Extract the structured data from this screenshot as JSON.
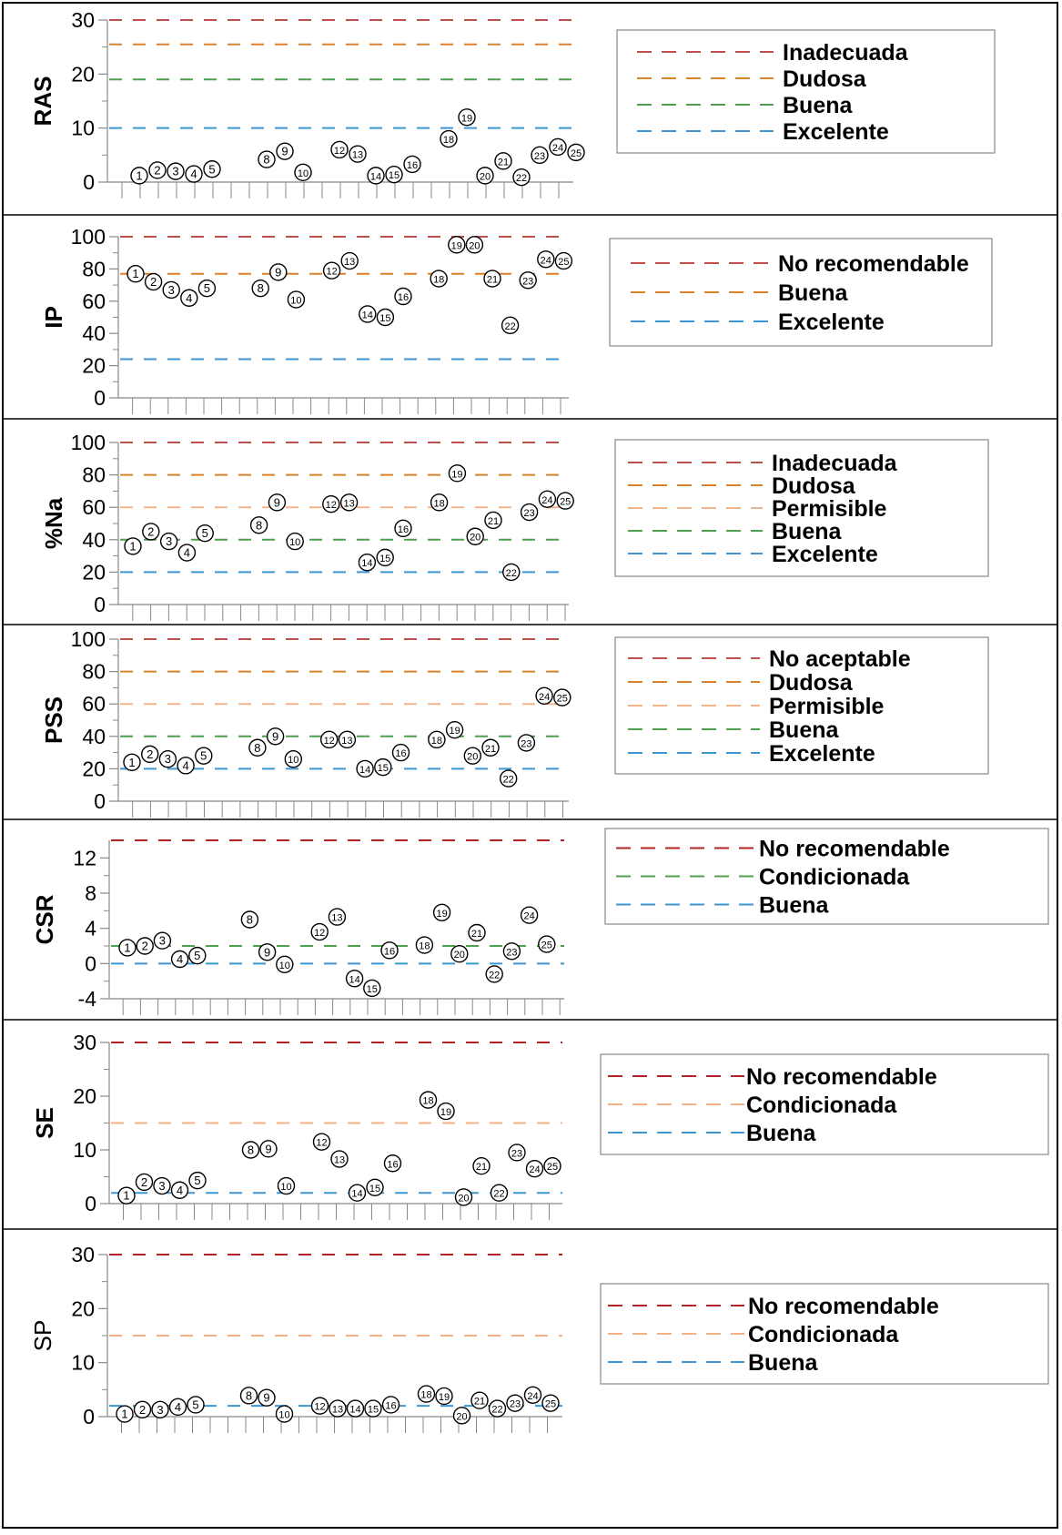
{
  "colors": {
    "inadecuada": "#C0504D",
    "dudosa": "#D9822B",
    "permisible": "#F2B48C",
    "buena_green": "#4EA04E",
    "excelente": "#3C96D2",
    "no_recomendable": "#B22222",
    "condicionada_orange": "#F4B183",
    "condicionada_green": "#4EA04E",
    "buena_blue": "#3C96D2"
  },
  "chart_data": [
    {
      "type": "scatter",
      "ylabel": "RAS",
      "ylim": [
        0,
        30
      ],
      "yticks": [
        0,
        10,
        20,
        30
      ],
      "points": [
        {
          "label": "1",
          "x": 1,
          "y": 1.2
        },
        {
          "label": "2",
          "x": 2,
          "y": 2.2
        },
        {
          "label": "3",
          "x": 3,
          "y": 2.0
        },
        {
          "label": "4",
          "x": 4,
          "y": 1.5
        },
        {
          "label": "5",
          "x": 5,
          "y": 2.4
        },
        {
          "label": "8",
          "x": 8,
          "y": 4.2
        },
        {
          "label": "9",
          "x": 9,
          "y": 5.7
        },
        {
          "label": "10",
          "x": 10,
          "y": 1.8
        },
        {
          "label": "12",
          "x": 12,
          "y": 6.0
        },
        {
          "label": "13",
          "x": 13,
          "y": 5.2
        },
        {
          "label": "14",
          "x": 14,
          "y": 1.2
        },
        {
          "label": "15",
          "x": 15,
          "y": 1.4
        },
        {
          "label": "16",
          "x": 16,
          "y": 3.3
        },
        {
          "label": "18",
          "x": 18,
          "y": 8.0
        },
        {
          "label": "19",
          "x": 19,
          "y": 12.0
        },
        {
          "label": "20",
          "x": 20,
          "y": 1.2
        },
        {
          "label": "21",
          "x": 21,
          "y": 3.9
        },
        {
          "label": "22",
          "x": 22,
          "y": 0.9
        },
        {
          "label": "23",
          "x": 23,
          "y": 5.0
        },
        {
          "label": "24",
          "x": 24,
          "y": 6.5
        },
        {
          "label": "25",
          "x": 25,
          "y": 5.5
        }
      ],
      "thresholds": [
        {
          "name": "Inadecuada",
          "value": 30,
          "color": "#C0504D"
        },
        {
          "name": "Dudosa",
          "value": 25.5,
          "color": "#D9822B"
        },
        {
          "name": "Buena",
          "value": 19,
          "color": "#4EA04E"
        },
        {
          "name": "Excelente",
          "value": 10,
          "color": "#3C96D2"
        }
      ]
    },
    {
      "type": "scatter",
      "ylabel": "IP",
      "ylim": [
        0,
        100
      ],
      "yticks": [
        0,
        20,
        40,
        60,
        80,
        100
      ],
      "points": [
        {
          "label": "1",
          "x": 1,
          "y": 77
        },
        {
          "label": "2",
          "x": 2,
          "y": 72
        },
        {
          "label": "3",
          "x": 3,
          "y": 67
        },
        {
          "label": "4",
          "x": 4,
          "y": 62
        },
        {
          "label": "5",
          "x": 5,
          "y": 68
        },
        {
          "label": "8",
          "x": 8,
          "y": 68
        },
        {
          "label": "9",
          "x": 9,
          "y": 78
        },
        {
          "label": "10",
          "x": 10,
          "y": 61
        },
        {
          "label": "12",
          "x": 12,
          "y": 79
        },
        {
          "label": "13",
          "x": 13,
          "y": 85
        },
        {
          "label": "14",
          "x": 14,
          "y": 52
        },
        {
          "label": "15",
          "x": 15,
          "y": 50
        },
        {
          "label": "16",
          "x": 16,
          "y": 63
        },
        {
          "label": "18",
          "x": 18,
          "y": 74
        },
        {
          "label": "19",
          "x": 19,
          "y": 95
        },
        {
          "label": "20",
          "x": 20,
          "y": 95
        },
        {
          "label": "21",
          "x": 21,
          "y": 74
        },
        {
          "label": "22",
          "x": 22,
          "y": 45
        },
        {
          "label": "23",
          "x": 23,
          "y": 73
        },
        {
          "label": "24",
          "x": 24,
          "y": 86
        },
        {
          "label": "25",
          "x": 25,
          "y": 85
        }
      ],
      "thresholds": [
        {
          "name": "No recomendable",
          "value": 100,
          "color": "#C0504D"
        },
        {
          "name": "Buena",
          "value": 77,
          "color": "#D9822B"
        },
        {
          "name": "Excelente",
          "value": 24,
          "color": "#3C96D2"
        }
      ]
    },
    {
      "type": "scatter",
      "ylabel": "%Na",
      "ylim": [
        0,
        100
      ],
      "yticks": [
        0,
        20,
        40,
        60,
        80,
        100
      ],
      "points": [
        {
          "label": "1",
          "x": 1,
          "y": 36
        },
        {
          "label": "2",
          "x": 2,
          "y": 45
        },
        {
          "label": "3",
          "x": 3,
          "y": 39
        },
        {
          "label": "4",
          "x": 4,
          "y": 32
        },
        {
          "label": "5",
          "x": 5,
          "y": 44
        },
        {
          "label": "8",
          "x": 8,
          "y": 49
        },
        {
          "label": "9",
          "x": 9,
          "y": 63
        },
        {
          "label": "10",
          "x": 10,
          "y": 39
        },
        {
          "label": "12",
          "x": 12,
          "y": 62
        },
        {
          "label": "13",
          "x": 13,
          "y": 63
        },
        {
          "label": "14",
          "x": 14,
          "y": 26
        },
        {
          "label": "15",
          "x": 15,
          "y": 29
        },
        {
          "label": "16",
          "x": 16,
          "y": 47
        },
        {
          "label": "18",
          "x": 18,
          "y": 63
        },
        {
          "label": "19",
          "x": 19,
          "y": 81
        },
        {
          "label": "20",
          "x": 20,
          "y": 42
        },
        {
          "label": "21",
          "x": 21,
          "y": 52
        },
        {
          "label": "22",
          "x": 22,
          "y": 20
        },
        {
          "label": "23",
          "x": 23,
          "y": 57
        },
        {
          "label": "24",
          "x": 24,
          "y": 65
        },
        {
          "label": "25",
          "x": 25,
          "y": 64
        }
      ],
      "thresholds": [
        {
          "name": "Inadecuada",
          "value": 100,
          "color": "#C0504D"
        },
        {
          "name": "Dudosa",
          "value": 80,
          "color": "#D9822B"
        },
        {
          "name": "Permisible",
          "value": 60,
          "color": "#F2B48C"
        },
        {
          "name": "Buena",
          "value": 40,
          "color": "#4EA04E"
        },
        {
          "name": "Excelente",
          "value": 20,
          "color": "#3C96D2"
        }
      ]
    },
    {
      "type": "scatter",
      "ylabel": "PSS",
      "ylim": [
        0,
        100
      ],
      "yticks": [
        0,
        20,
        40,
        60,
        80,
        100
      ],
      "points": [
        {
          "label": "1",
          "x": 1,
          "y": 24
        },
        {
          "label": "2",
          "x": 2,
          "y": 29
        },
        {
          "label": "3",
          "x": 3,
          "y": 26
        },
        {
          "label": "4",
          "x": 4,
          "y": 22
        },
        {
          "label": "5",
          "x": 5,
          "y": 28
        },
        {
          "label": "8",
          "x": 8,
          "y": 33
        },
        {
          "label": "9",
          "x": 9,
          "y": 40
        },
        {
          "label": "10",
          "x": 10,
          "y": 26
        },
        {
          "label": "12",
          "x": 12,
          "y": 38
        },
        {
          "label": "13",
          "x": 13,
          "y": 38
        },
        {
          "label": "14",
          "x": 14,
          "y": 20
        },
        {
          "label": "15",
          "x": 15,
          "y": 21
        },
        {
          "label": "16",
          "x": 16,
          "y": 30
        },
        {
          "label": "18",
          "x": 18,
          "y": 38
        },
        {
          "label": "19",
          "x": 19,
          "y": 44
        },
        {
          "label": "20",
          "x": 20,
          "y": 28
        },
        {
          "label": "21",
          "x": 21,
          "y": 33
        },
        {
          "label": "22",
          "x": 22,
          "y": 14
        },
        {
          "label": "23",
          "x": 23,
          "y": 36
        },
        {
          "label": "24",
          "x": 24,
          "y": 65
        },
        {
          "label": "25",
          "x": 25,
          "y": 64
        }
      ],
      "thresholds": [
        {
          "name": "No aceptable",
          "value": 100,
          "color": "#C0504D"
        },
        {
          "name": "Dudosa",
          "value": 80,
          "color": "#D9822B"
        },
        {
          "name": "Permisible",
          "value": 60,
          "color": "#F2B48C"
        },
        {
          "name": "Buena",
          "value": 40,
          "color": "#4EA04E"
        },
        {
          "name": "Excelente",
          "value": 20,
          "color": "#3C96D2"
        }
      ]
    },
    {
      "type": "scatter",
      "ylabel": "CSR",
      "ylim": [
        -4,
        14
      ],
      "yticks": [
        -4,
        0,
        4,
        8,
        12
      ],
      "points": [
        {
          "label": "1",
          "x": 1,
          "y": 1.8
        },
        {
          "label": "2",
          "x": 2,
          "y": 2.0
        },
        {
          "label": "3",
          "x": 3,
          "y": 2.6
        },
        {
          "label": "4",
          "x": 4,
          "y": 0.5
        },
        {
          "label": "5",
          "x": 5,
          "y": 0.9
        },
        {
          "label": "8",
          "x": 8,
          "y": 5.0
        },
        {
          "label": "9",
          "x": 9,
          "y": 1.3
        },
        {
          "label": "10",
          "x": 10,
          "y": -0.1
        },
        {
          "label": "12",
          "x": 12,
          "y": 3.6
        },
        {
          "label": "13",
          "x": 13,
          "y": 5.3
        },
        {
          "label": "14",
          "x": 14,
          "y": -1.7
        },
        {
          "label": "15",
          "x": 15,
          "y": -2.8
        },
        {
          "label": "16",
          "x": 16,
          "y": 1.5
        },
        {
          "label": "18",
          "x": 18,
          "y": 2.1
        },
        {
          "label": "19",
          "x": 19,
          "y": 5.8
        },
        {
          "label": "20",
          "x": 20,
          "y": 1.1
        },
        {
          "label": "21",
          "x": 21,
          "y": 3.5
        },
        {
          "label": "22",
          "x": 22,
          "y": -1.2
        },
        {
          "label": "23",
          "x": 23,
          "y": 1.4
        },
        {
          "label": "24",
          "x": 24,
          "y": 5.5
        },
        {
          "label": "25",
          "x": 25,
          "y": 2.2
        }
      ],
      "thresholds": [
        {
          "name": "No recomendable",
          "value": 14,
          "color": "#B22222"
        },
        {
          "name": "Condicionada",
          "value": 2,
          "color": "#4EA04E"
        },
        {
          "name": "Buena",
          "value": 0,
          "color": "#3C96D2"
        }
      ]
    },
    {
      "type": "scatter",
      "ylabel": "SE",
      "ylim": [
        0,
        30
      ],
      "yticks": [
        0,
        10,
        20,
        30
      ],
      "points": [
        {
          "label": "1",
          "x": 1,
          "y": 1.5
        },
        {
          "label": "2",
          "x": 2,
          "y": 4.0
        },
        {
          "label": "3",
          "x": 3,
          "y": 3.3
        },
        {
          "label": "4",
          "x": 4,
          "y": 2.5
        },
        {
          "label": "5",
          "x": 5,
          "y": 4.3
        },
        {
          "label": "8",
          "x": 8,
          "y": 10.0
        },
        {
          "label": "9",
          "x": 9,
          "y": 10.2
        },
        {
          "label": "10",
          "x": 10,
          "y": 3.3
        },
        {
          "label": "12",
          "x": 12,
          "y": 11.5
        },
        {
          "label": "13",
          "x": 13,
          "y": 8.3
        },
        {
          "label": "14",
          "x": 14,
          "y": 2.0
        },
        {
          "label": "15",
          "x": 15,
          "y": 3.0
        },
        {
          "label": "16",
          "x": 16,
          "y": 7.5
        },
        {
          "label": "18",
          "x": 18,
          "y": 19.3
        },
        {
          "label": "19",
          "x": 19,
          "y": 17.2
        },
        {
          "label": "20",
          "x": 20,
          "y": 1.2
        },
        {
          "label": "21",
          "x": 21,
          "y": 7.0
        },
        {
          "label": "22",
          "x": 22,
          "y": 2.0
        },
        {
          "label": "23",
          "x": 23,
          "y": 9.5
        },
        {
          "label": "24",
          "x": 24,
          "y": 6.5
        },
        {
          "label": "25",
          "x": 25,
          "y": 7.0
        }
      ],
      "thresholds": [
        {
          "name": "No recomendable",
          "value": 30,
          "color": "#B22222"
        },
        {
          "name": "Condicionada",
          "value": 15,
          "color": "#F4B183"
        },
        {
          "name": "Buena",
          "value": 2,
          "color": "#3C96D2"
        }
      ]
    },
    {
      "type": "scatter",
      "ylabel": "SP",
      "ylim": [
        0,
        30
      ],
      "yticks": [
        0,
        10,
        20,
        30
      ],
      "points": [
        {
          "label": "1",
          "x": 1,
          "y": 0.5
        },
        {
          "label": "2",
          "x": 2,
          "y": 1.3
        },
        {
          "label": "3",
          "x": 3,
          "y": 1.3
        },
        {
          "label": "4",
          "x": 4,
          "y": 1.8
        },
        {
          "label": "5",
          "x": 5,
          "y": 2.2
        },
        {
          "label": "8",
          "x": 8,
          "y": 3.9
        },
        {
          "label": "9",
          "x": 9,
          "y": 3.5
        },
        {
          "label": "10",
          "x": 10,
          "y": 0.5
        },
        {
          "label": "12",
          "x": 12,
          "y": 2.0
        },
        {
          "label": "13",
          "x": 13,
          "y": 1.5
        },
        {
          "label": "14",
          "x": 14,
          "y": 1.5
        },
        {
          "label": "15",
          "x": 15,
          "y": 1.5
        },
        {
          "label": "16",
          "x": 16,
          "y": 2.2
        },
        {
          "label": "18",
          "x": 18,
          "y": 4.2
        },
        {
          "label": "19",
          "x": 19,
          "y": 3.8
        },
        {
          "label": "20",
          "x": 20,
          "y": 0.2
        },
        {
          "label": "21",
          "x": 21,
          "y": 3.0
        },
        {
          "label": "22",
          "x": 22,
          "y": 1.5
        },
        {
          "label": "23",
          "x": 23,
          "y": 2.5
        },
        {
          "label": "24",
          "x": 24,
          "y": 4.0
        },
        {
          "label": "25",
          "x": 25,
          "y": 2.5
        }
      ],
      "thresholds": [
        {
          "name": "No recomendable",
          "value": 30,
          "color": "#B22222"
        },
        {
          "name": "Condicionada",
          "value": 15,
          "color": "#F4B183"
        },
        {
          "name": "Buena",
          "value": 2,
          "color": "#3C96D2"
        }
      ]
    }
  ]
}
